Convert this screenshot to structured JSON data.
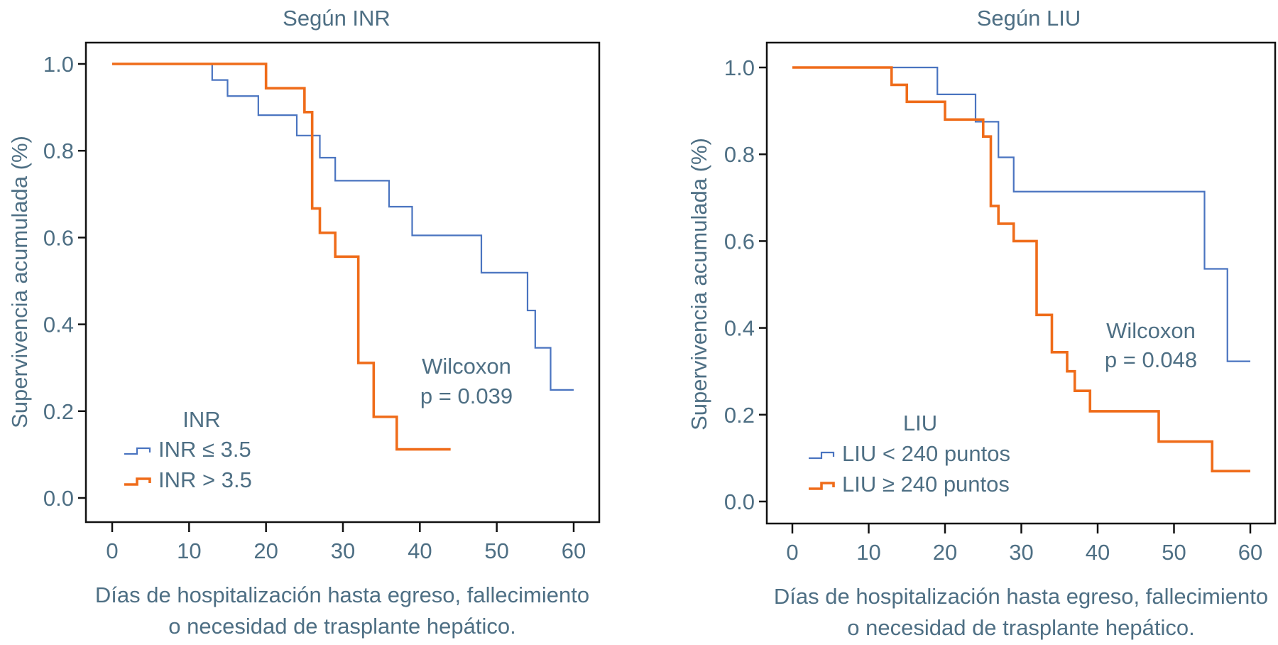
{
  "colors": {
    "series_a": "#4a74c0",
    "series_b": "#ef6c1a",
    "text": "#4e6f84",
    "axis": "#111111"
  },
  "chart_data": [
    {
      "type": "line",
      "subtype": "kaplan-meier-step",
      "title": "Según INR",
      "xlabel_lines": [
        "Días de hospitalización hasta egreso, fallecimiento",
        "o necesidad de trasplante hepático."
      ],
      "ylabel": "Supervivencia acumulada (%)",
      "xlim": [
        0,
        60
      ],
      "ylim": [
        0.0,
        1.0
      ],
      "xticks": [
        "0",
        "10",
        "20",
        "30",
        "40",
        "50",
        "60"
      ],
      "yticks": [
        "0.0",
        "0.2",
        "0.4",
        "0.6",
        "0.8",
        "1.0"
      ],
      "grid": false,
      "legend": {
        "title": "INR",
        "placement": "bottom-left",
        "entries": [
          "INR ≤ 3.5",
          "INR > 3.5"
        ]
      },
      "annotation": [
        "Wilcoxon",
        "p = 0.039"
      ],
      "series": [
        {
          "name": "INR ≤ 3.5",
          "color_key": "series_a",
          "steps": [
            [
              0,
              1.0
            ],
            [
              13,
              0.963
            ],
            [
              15,
              0.926
            ],
            [
              19,
              0.882
            ],
            [
              24,
              0.835
            ],
            [
              27,
              0.784
            ],
            [
              29,
              0.731
            ],
            [
              36,
              0.671
            ],
            [
              39,
              0.605
            ],
            [
              48,
              0.519
            ],
            [
              54,
              0.432
            ],
            [
              55,
              0.346
            ],
            [
              57,
              0.249
            ]
          ],
          "end_x": 60
        },
        {
          "name": "INR > 3.5",
          "color_key": "series_b",
          "steps": [
            [
              0,
              1.0
            ],
            [
              20,
              0.944
            ],
            [
              25,
              0.889
            ],
            [
              26,
              0.667
            ],
            [
              27,
              0.611
            ],
            [
              29,
              0.556
            ],
            [
              32,
              0.311
            ],
            [
              34,
              0.187
            ],
            [
              37,
              0.112
            ]
          ],
          "end_x": 44
        }
      ]
    },
    {
      "type": "line",
      "subtype": "kaplan-meier-step",
      "title": "Según LIU",
      "xlabel_lines": [
        "Días de hospitalización hasta egreso, fallecimiento",
        "o necesidad de trasplante hepático."
      ],
      "ylabel": "Supervivencia acumulada (%)",
      "xlim": [
        0,
        60
      ],
      "ylim": [
        0.0,
        1.0
      ],
      "xticks": [
        "0",
        "10",
        "20",
        "30",
        "40",
        "50",
        "60"
      ],
      "yticks": [
        "0.0",
        "0.2",
        "0.4",
        "0.6",
        "0.8",
        "1.0"
      ],
      "grid": false,
      "legend": {
        "title": "LIU",
        "placement": "bottom-left",
        "entries": [
          "LIU < 240 puntos",
          "LIU ≥ 240 puntos"
        ]
      },
      "annotation": [
        "Wilcoxon",
        "p = 0.048"
      ],
      "series": [
        {
          "name": "LIU < 240 puntos",
          "color_key": "series_a",
          "steps": [
            [
              0,
              1.0
            ],
            [
              19,
              0.938
            ],
            [
              24,
              0.875
            ],
            [
              27,
              0.793
            ],
            [
              29,
              0.714
            ],
            [
              54,
              0.536
            ],
            [
              57,
              0.323
            ]
          ],
          "end_x": 60
        },
        {
          "name": "LIU ≥ 240 puntos",
          "color_key": "series_b",
          "steps": [
            [
              0,
              1.0
            ],
            [
              13,
              0.96
            ],
            [
              15,
              0.921
            ],
            [
              20,
              0.88
            ],
            [
              25,
              0.841
            ],
            [
              26,
              0.681
            ],
            [
              27,
              0.64
            ],
            [
              29,
              0.6
            ],
            [
              32,
              0.43
            ],
            [
              34,
              0.344
            ],
            [
              36,
              0.3
            ],
            [
              37,
              0.255
            ],
            [
              39,
              0.208
            ],
            [
              48,
              0.138
            ],
            [
              55,
              0.07
            ]
          ],
          "end_x": 60
        }
      ]
    }
  ]
}
